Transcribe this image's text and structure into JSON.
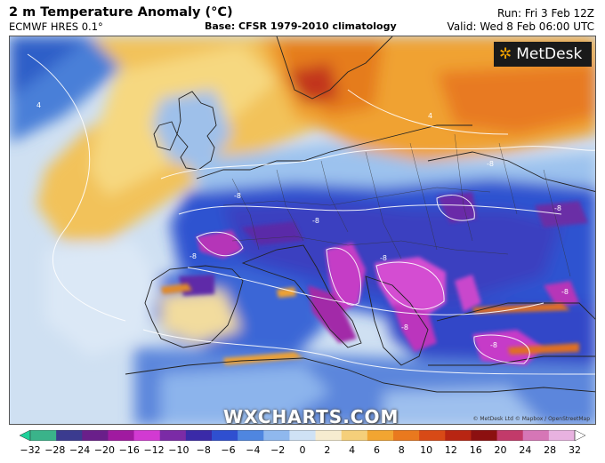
{
  "header": {
    "title": "2 m Temperature Anomaly (°C)",
    "model": "ECMWF HRES 0.1°",
    "base": "Base: CFSR 1979-2010 climatology",
    "run": "Run: Fri 3 Feb 12Z",
    "valid": "Valid: Wed 8 Feb 06:00 UTC"
  },
  "branding": {
    "logo": "MetDesk",
    "watermark": "WXCHARTS.COM",
    "attribution": "© MetDesk Ltd © Mapbox / OpenStreetMap"
  },
  "contour_labels": [
    "-8",
    "-8",
    "-8",
    "-8",
    "-8",
    "-8",
    "-8",
    "-8",
    "-8",
    "4",
    "4"
  ],
  "colorbar": {
    "ticks": [
      "−32",
      "−28",
      "−24",
      "−20",
      "−16",
      "−12",
      "−10",
      "−8",
      "−6",
      "−4",
      "−2",
      "0",
      "2",
      "4",
      "6",
      "8",
      "10",
      "12",
      "16",
      "20",
      "24",
      "28",
      "32"
    ],
    "colors": [
      "#1fd19a",
      "#3ab38a",
      "#3b3b8f",
      "#6a1f8a",
      "#a01aa0",
      "#d23ad2",
      "#7b2ba6",
      "#3a2aa8",
      "#2f4fd0",
      "#4f86e0",
      "#8fb8ee",
      "#cfe2f5",
      "#f6ecd0",
      "#f5cf7a",
      "#f2a531",
      "#e9791e",
      "#d84a16",
      "#b82512",
      "#8c1010",
      "#c23a6a",
      "#d676b6",
      "#e8b2e0",
      "#ffffff"
    ]
  }
}
